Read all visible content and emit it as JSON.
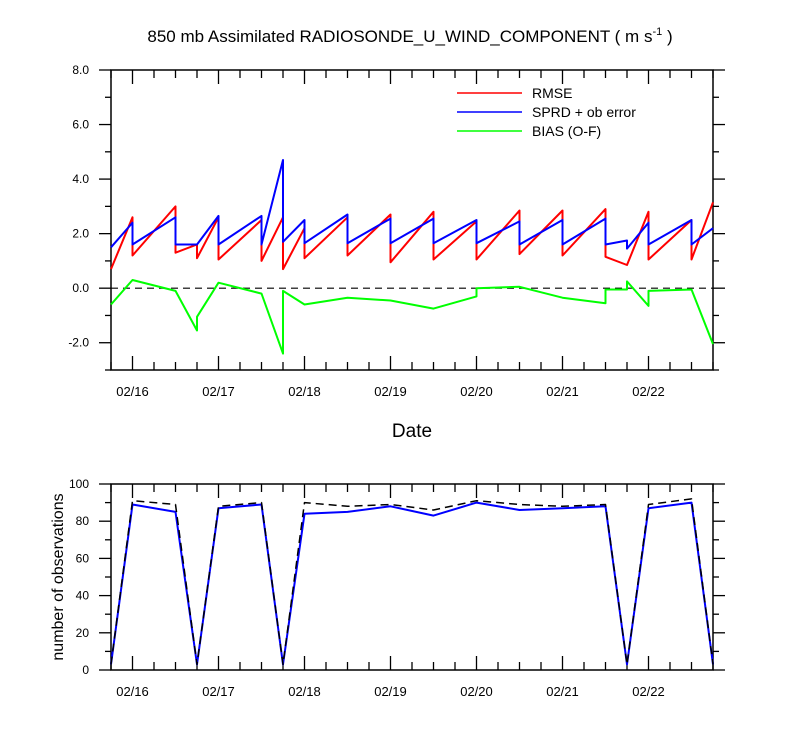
{
  "chart_data": [
    {
      "type": "line",
      "title": "850 mb Assimilated RADIOSONDE_U_WIND_COMPONENT ( m s",
      "title_sup": "-1",
      "title_tail": " )",
      "xlabel": "Date",
      "ylabel": "",
      "ylim": [
        -3,
        8
      ],
      "yticks": [
        "8.0",
        "6.0",
        "4.0",
        "2.0",
        "0.0",
        "-2.0"
      ],
      "ytick_values": [
        8,
        6,
        4,
        2,
        0,
        -2
      ],
      "xlim": [
        0,
        7
      ],
      "x_unit": "days since 02/15 18:00",
      "xticks": [
        "02/16",
        "02/17",
        "02/18",
        "02/19",
        "02/20",
        "02/21",
        "02/22"
      ],
      "xtick_values": [
        0.25,
        1.25,
        2.25,
        3.25,
        4.25,
        5.25,
        6.25
      ],
      "reference_line": 0,
      "legend_position": "top-right",
      "series": [
        {
          "name": "RMSE",
          "color": "#ff0000",
          "x": [
            0.0,
            0.25,
            0.25,
            0.75,
            0.75,
            1.0,
            1.0,
            1.25,
            1.25,
            1.75,
            1.75,
            2.0,
            2.0,
            2.25,
            2.25,
            2.75,
            2.75,
            3.25,
            3.25,
            3.75,
            3.75,
            4.25,
            4.25,
            4.75,
            4.75,
            5.25,
            5.25,
            5.75,
            5.75,
            6.0,
            6.0,
            6.25,
            6.25,
            6.75,
            6.75,
            7.0
          ],
          "values": [
            0.7,
            2.6,
            1.2,
            3.0,
            1.3,
            1.6,
            1.1,
            2.6,
            1.05,
            2.5,
            1.0,
            2.6,
            0.7,
            2.2,
            1.1,
            2.6,
            1.2,
            2.7,
            0.95,
            2.8,
            1.05,
            2.45,
            1.05,
            2.85,
            1.25,
            2.85,
            1.2,
            2.9,
            1.15,
            0.85,
            0.85,
            2.8,
            1.05,
            2.5,
            1.05,
            3.15
          ]
        },
        {
          "name": "SPRD + ob error",
          "color": "#0000ff",
          "x": [
            0.0,
            0.25,
            0.25,
            0.75,
            0.75,
            1.0,
            1.0,
            1.25,
            1.25,
            1.75,
            1.75,
            2.0,
            2.0,
            2.25,
            2.25,
            2.75,
            2.75,
            3.25,
            3.25,
            3.75,
            3.75,
            4.25,
            4.25,
            4.75,
            4.75,
            5.25,
            5.25,
            5.75,
            5.75,
            6.0,
            6.0,
            6.25,
            6.25,
            6.75,
            6.75,
            7.0
          ],
          "values": [
            1.5,
            2.4,
            1.6,
            2.6,
            1.6,
            1.6,
            1.6,
            2.65,
            1.6,
            2.65,
            1.6,
            4.7,
            1.7,
            2.5,
            1.65,
            2.7,
            1.65,
            2.55,
            1.65,
            2.55,
            1.65,
            2.5,
            1.65,
            2.45,
            1.6,
            2.5,
            1.6,
            2.55,
            1.6,
            1.75,
            1.45,
            2.4,
            1.6,
            2.5,
            1.6,
            2.2
          ]
        },
        {
          "name": "BIAS (O-F)",
          "color": "#00ff00",
          "x": [
            0.0,
            0.25,
            0.75,
            1.0,
            1.0,
            1.25,
            1.75,
            2.0,
            2.0,
            2.25,
            2.75,
            3.25,
            3.75,
            4.25,
            4.25,
            4.75,
            5.25,
            5.75,
            5.75,
            6.0,
            6.0,
            6.25,
            6.25,
            6.75,
            7.0
          ],
          "values": [
            -0.6,
            0.3,
            -0.1,
            -1.55,
            -1.05,
            0.2,
            -0.2,
            -2.4,
            -0.1,
            -0.6,
            -0.35,
            -0.45,
            -0.75,
            -0.3,
            0.0,
            0.05,
            -0.35,
            -0.55,
            -0.05,
            -0.05,
            0.25,
            -0.65,
            -0.1,
            -0.05,
            -2.05
          ]
        }
      ]
    },
    {
      "type": "line",
      "title": "",
      "xlabel": "",
      "ylabel": "number of observations",
      "ylim": [
        0,
        100
      ],
      "yticks": [
        "100",
        "80",
        "60",
        "40",
        "20",
        "0"
      ],
      "ytick_values": [
        100,
        80,
        60,
        40,
        20,
        0
      ],
      "xlim": [
        0,
        7
      ],
      "x_unit": "days since 02/15 18:00",
      "xticks": [
        "02/16",
        "02/17",
        "02/18",
        "02/19",
        "02/20",
        "02/21",
        "02/22"
      ],
      "xtick_values": [
        0.25,
        1.25,
        2.25,
        3.25,
        4.25,
        5.25,
        6.25
      ],
      "series": [
        {
          "color": "#0000ff",
          "style": "solid",
          "x": [
            0.0,
            0.25,
            0.75,
            1.0,
            1.25,
            1.75,
            2.0,
            2.25,
            2.75,
            3.25,
            3.75,
            4.25,
            4.75,
            5.25,
            5.75,
            6.0,
            6.25,
            6.75,
            7.0
          ],
          "values": [
            3,
            89,
            85,
            3,
            87,
            89,
            3,
            84,
            85,
            88,
            83,
            90,
            86,
            87,
            88,
            3,
            87,
            90,
            3
          ]
        },
        {
          "color": "#000000",
          "style": "dashed",
          "x": [
            0.0,
            0.25,
            0.75,
            1.0,
            1.25,
            1.75,
            2.0,
            2.25,
            2.75,
            3.25,
            3.75,
            4.25,
            4.75,
            5.25,
            5.75,
            6.0,
            6.25,
            6.75,
            7.0
          ],
          "values": [
            3,
            91,
            89,
            3,
            88,
            90,
            3,
            90,
            88,
            89,
            86,
            91,
            89,
            88,
            89,
            3,
            89,
            92,
            3
          ]
        }
      ]
    }
  ]
}
